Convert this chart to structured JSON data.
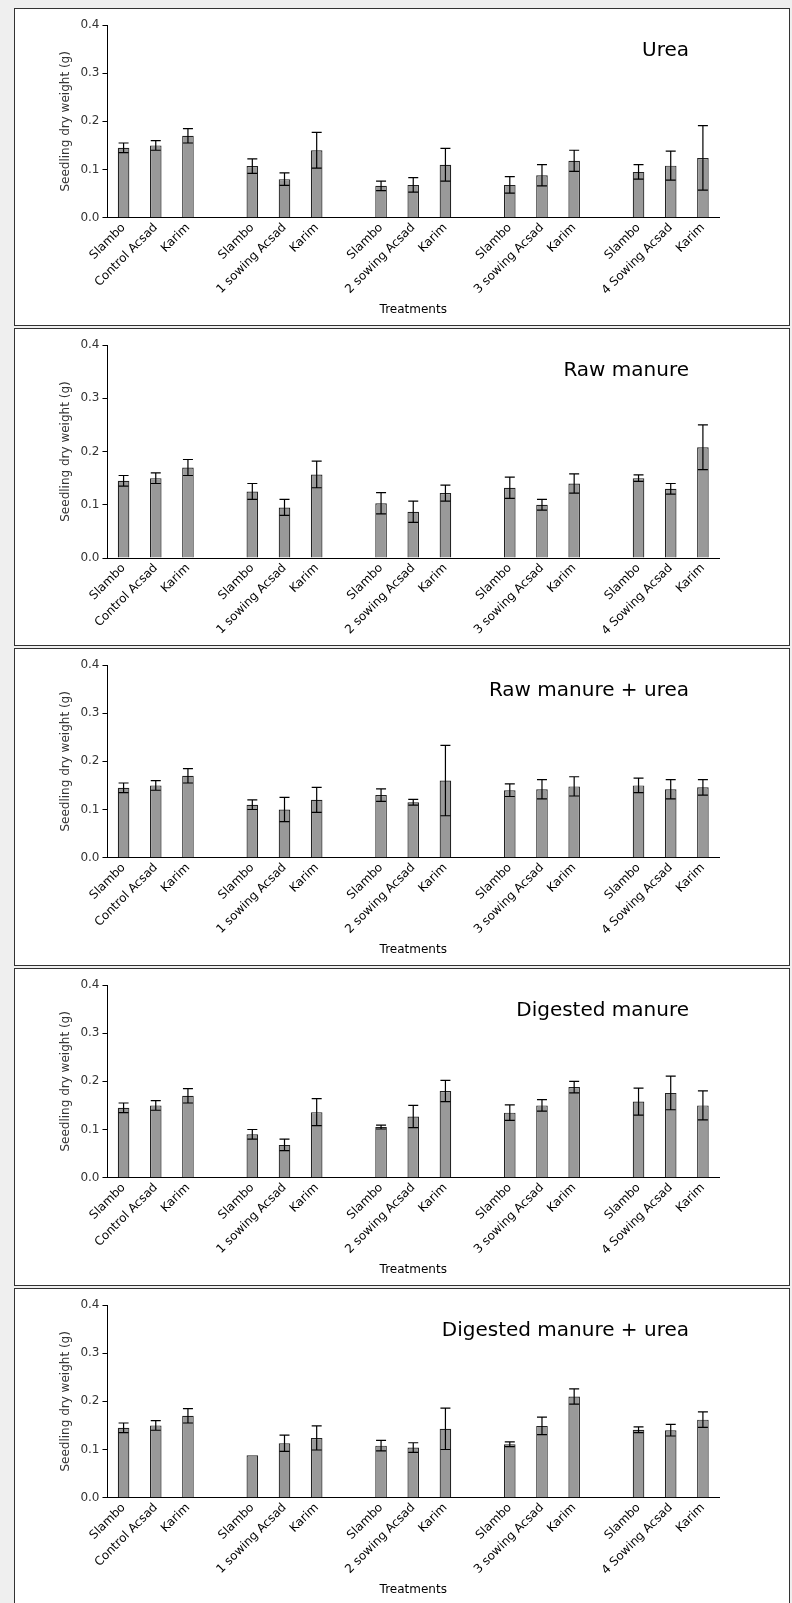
{
  "chart_data": [
    {
      "type": "bar",
      "title": "Urea",
      "xlabel": "Treatments",
      "ylabel": "Seedling dry weight (g)",
      "color": "#999999",
      "grid": false,
      "categories": [
        "Slambo",
        "Control Acsad",
        "Karim",
        null,
        "Slambo",
        "1 sowing Acsad",
        "Karim",
        null,
        "Slambo",
        "2 sowing Acsad",
        "Karim",
        null,
        "Slambo",
        "3 sowing Acsad",
        "Karim",
        null,
        "Slambo",
        "4 Sowing Acsad",
        "Karim"
      ],
      "values": [
        0.145,
        0.15,
        0.17,
        null,
        0.107,
        0.08,
        0.14,
        null,
        0.066,
        0.068,
        0.11,
        null,
        0.068,
        0.088,
        0.118,
        null,
        0.095,
        0.108,
        0.124
      ],
      "errors": [
        0.01,
        0.01,
        0.015,
        null,
        0.015,
        0.013,
        0.037,
        null,
        0.01,
        0.015,
        0.034,
        null,
        0.017,
        0.022,
        0.022,
        null,
        0.015,
        0.03,
        0.067
      ],
      "ylim": [
        0,
        0.4
      ],
      "yticks": [
        {
          "value": 0,
          "label": "0.0"
        },
        {
          "value": 0.1,
          "label": "0.1"
        },
        {
          "value": 0.2,
          "label": "0.2"
        },
        {
          "value": 0.3,
          "label": "0.3"
        },
        {
          "value": 0.4,
          "label": "0.4"
        }
      ]
    },
    {
      "type": "bar",
      "title": "Raw manure",
      "ylabel": "Seedling dry weight (g)",
      "color": "#999999",
      "grid": false,
      "categories": [
        "Slambo",
        "Control Acsad",
        "Karim",
        null,
        "Slambo",
        "1 sowing Acsad",
        "Karim",
        null,
        "Slambo",
        "2 sowing Acsad",
        "Karim",
        null,
        "Slambo",
        "3 sowing Acsad",
        "Karim",
        null,
        "Slambo",
        "4 Sowing Acsad",
        "Karim"
      ],
      "values": [
        0.145,
        0.15,
        0.17,
        null,
        0.125,
        0.095,
        0.157,
        null,
        0.103,
        0.087,
        0.122,
        null,
        0.132,
        0.1,
        0.14,
        null,
        0.15,
        0.13,
        0.208
      ],
      "errors": [
        0.01,
        0.01,
        0.015,
        null,
        0.015,
        0.015,
        0.025,
        null,
        0.02,
        0.02,
        0.015,
        null,
        0.02,
        0.01,
        0.018,
        null,
        0.006,
        0.01,
        0.042
      ],
      "ylim": [
        0,
        0.4
      ],
      "yticks": [
        {
          "value": 0,
          "label": "0.0"
        },
        {
          "value": 0.1,
          "label": "0.1"
        },
        {
          "value": 0.2,
          "label": "0.2"
        },
        {
          "value": 0.3,
          "label": "0.3"
        },
        {
          "value": 0.4,
          "label": "0.4"
        }
      ]
    },
    {
      "type": "bar",
      "title": "Raw manure + urea",
      "xlabel": "Treatments",
      "ylabel": "Seedling dry weight (g)",
      "color": "#999999",
      "grid": false,
      "categories": [
        "Slambo",
        "Control Acsad",
        "Karim",
        null,
        "Slambo",
        "1 sowing Acsad",
        "Karim",
        null,
        "Slambo",
        "2 sowing Acsad",
        "Karim",
        null,
        "Slambo",
        "3 sowing Acsad",
        "Karim",
        null,
        "Slambo",
        "4 Sowing Acsad",
        "Karim"
      ],
      "values": [
        0.145,
        0.15,
        0.17,
        null,
        0.11,
        0.1,
        0.12,
        null,
        0.13,
        0.115,
        0.16,
        null,
        0.14,
        0.142,
        0.148,
        null,
        0.15,
        0.142,
        0.146
      ],
      "errors": [
        0.01,
        0.01,
        0.015,
        null,
        0.01,
        0.025,
        0.026,
        null,
        0.013,
        0.006,
        0.073,
        null,
        0.013,
        0.02,
        0.02,
        null,
        0.015,
        0.02,
        0.016
      ],
      "ylim": [
        0,
        0.4
      ],
      "yticks": [
        {
          "value": 0,
          "label": "0.0"
        },
        {
          "value": 0.1,
          "label": "0.1"
        },
        {
          "value": 0.2,
          "label": "0.2"
        },
        {
          "value": 0.3,
          "label": "0.3"
        },
        {
          "value": 0.4,
          "label": "0.4"
        }
      ]
    },
    {
      "type": "bar",
      "title": "Digested manure",
      "xlabel": "Treatments",
      "ylabel": "Seedling dry weight (g)",
      "color": "#999999",
      "grid": false,
      "categories": [
        "Slambo",
        "Control Acsad",
        "Karim",
        null,
        "Slambo",
        "1 sowing Acsad",
        "Karim",
        null,
        "Slambo",
        "2 sowing Acsad",
        "Karim",
        null,
        "Slambo",
        "3 sowing Acsad",
        "Karim",
        null,
        "Slambo",
        "4 Sowing Acsad",
        "Karim"
      ],
      "values": [
        0.145,
        0.15,
        0.17,
        null,
        0.09,
        0.068,
        0.136,
        null,
        0.105,
        0.127,
        0.18,
        null,
        0.135,
        0.15,
        0.188,
        null,
        0.158,
        0.176,
        0.15
      ],
      "errors": [
        0.01,
        0.01,
        0.015,
        null,
        0.01,
        0.012,
        0.028,
        null,
        0.004,
        0.023,
        0.022,
        null,
        0.016,
        0.012,
        0.012,
        null,
        0.028,
        0.035,
        0.03
      ],
      "ylim": [
        0,
        0.4
      ],
      "yticks": [
        {
          "value": 0,
          "label": "0.0"
        },
        {
          "value": 0.1,
          "label": "0.1"
        },
        {
          "value": 0.2,
          "label": "0.2"
        },
        {
          "value": 0.3,
          "label": "0.3"
        },
        {
          "value": 0.4,
          "label": "0.4"
        }
      ]
    },
    {
      "type": "bar",
      "title": "Digested manure + urea",
      "xlabel": "Treatments",
      "ylabel": "Seedling dry weight (g)",
      "color": "#999999",
      "grid": false,
      "categories": [
        "Slambo",
        "Control Acsad",
        "Karim",
        null,
        "Slambo",
        "1 sowing Acsad",
        "Karim",
        null,
        "Slambo",
        "2 sowing Acsad",
        "Karim",
        null,
        "Slambo",
        "3 sowing Acsad",
        "Karim",
        null,
        "Slambo",
        "4 Sowing Acsad",
        "Karim"
      ],
      "values": [
        0.145,
        0.15,
        0.17,
        null,
        0.088,
        0.113,
        0.124,
        null,
        0.108,
        0.104,
        0.143,
        null,
        0.111,
        0.149,
        0.21,
        null,
        0.141,
        0.14,
        0.162
      ],
      "errors": [
        0.01,
        0.01,
        0.015,
        null,
        null,
        0.017,
        0.025,
        null,
        0.011,
        0.01,
        0.043,
        null,
        0.005,
        0.018,
        0.016,
        null,
        0.006,
        0.012,
        0.016
      ],
      "ylim": [
        0,
        0.4
      ],
      "yticks": [
        {
          "value": 0,
          "label": "0.0"
        },
        {
          "value": 0.1,
          "label": "0.1"
        },
        {
          "value": 0.2,
          "label": "0.2"
        },
        {
          "value": 0.3,
          "label": "0.3"
        },
        {
          "value": 0.4,
          "label": "0.4"
        }
      ]
    }
  ]
}
